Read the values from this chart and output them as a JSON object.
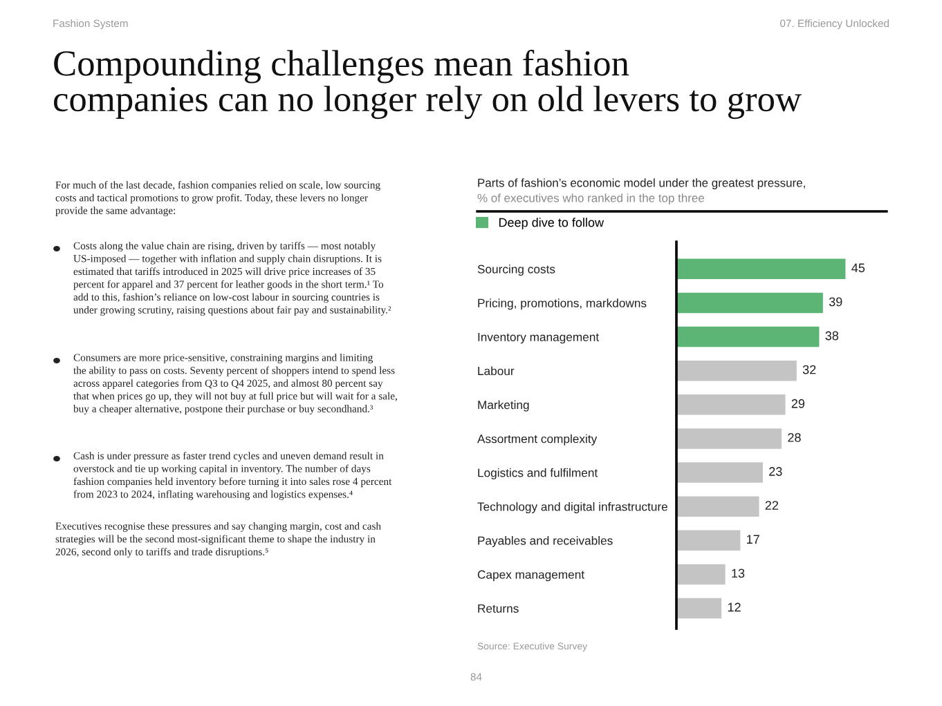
{
  "chart_data": {
    "type": "bar",
    "orientation": "horizontal",
    "title": "Compounding challenges mean fashion\ncompanies can no longer rely on old levers to grow",
    "subtitle": "Parts of fashion’s economic model under the greatest pressure,\n% of executives who ranked in the top three",
    "categories": [
      "Sourcing costs",
      "Pricing, promotions, markdowns",
      "Inventory management",
      "Labour",
      "Marketing",
      "Assortment complexity",
      "Logistics and fulfilment",
      "Technology and digital infrastructure",
      "Payables and receivables",
      "Capex management",
      "Returns"
    ],
    "series": [
      {
        "name": "Deep dive to follow",
        "color": "#5cb574",
        "values": [
          45,
          39,
          38,
          null,
          null,
          null,
          null,
          null,
          null,
          null,
          null
        ]
      },
      {
        "color": "#c4c4c4",
        "values": [
          null,
          null,
          null,
          32,
          29,
          28,
          23,
          22,
          17,
          13,
          12
        ]
      }
    ],
    "data_labels": true,
    "legend": "top left",
    "grid": false,
    "annotations": [
      "Fashion System",
      "07. Efficiency Unlocked",
      "For much of the last decade, fashion companies relied on scale, low sourcing\ncosts and tactical promotions to grow profit. Today, these levers no longer\nprovide the same advantage:",
      "Costs along the value chain are rising, driven by tariffs — most notably\nUS-imposed — together with inflation and supply chain disruptions. It is\nestimated that tariffs introduced in 2025 will drive price increases of 35\npercent for apparel and 37 percent for leather goods in the short term.¹ To\nadd to this, fashion’s reliance on low-cost labour in sourcing countries is\nunder growing scrutiny, raising questions about fair pay and sustainability.²",
      "Consumers are more price-sensitive, constraining margins and limiting\nthe ability to pass on costs. Seventy percent of shoppers intend to spend less\nacross apparel categories from Q3 to Q4 2025, and almost 80 percent say\nthat when prices go up, they will not buy at full price but will wait for a sale,\nbuy a cheaper alternative, postpone their purchase or buy secondhand.³",
      "Cash is under pressure as faster trend cycles and uneven demand result in\noverstock and tie up working capital in inventory. The number of days\nfashion companies held inventory before turning it into sales rose 4 percent\nfrom 2023 to 2024, inflating warehousing and logistics expenses.⁴",
      "Executives recognise these pressures and say changing margin, cost and cash\nstrategies will be the second most-significant theme to shape the industry in\n2026, second only to tariffs and trade disruptions.⁵",
      "Source: Executive Survey",
      "84"
    ]
  }
}
